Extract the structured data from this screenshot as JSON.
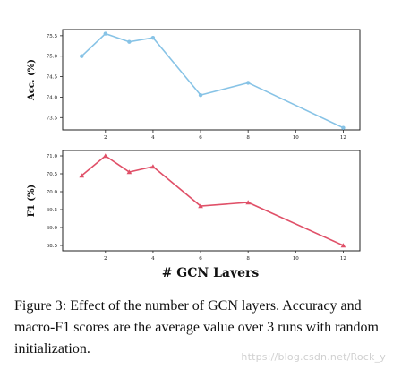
{
  "figure": {
    "xlabel": "# GCN Layers",
    "caption": "Figure 3:  Effect of the number of GCN layers.  Accuracy and macro-F1 scores are the average value over 3 runs with random initialization.",
    "watermark": "https://blog.csdn.net/Rock_y"
  },
  "chart_data": [
    {
      "type": "line",
      "ylabel": "Acc. (%)",
      "x": [
        1,
        2,
        3,
        4,
        6,
        8,
        12
      ],
      "xticks": [
        2,
        4,
        6,
        8,
        10,
        12
      ],
      "y": [
        75.0,
        75.55,
        75.35,
        75.45,
        74.05,
        74.35,
        73.25
      ],
      "yticks": [
        73.5,
        74.0,
        74.5,
        75.0,
        75.5
      ],
      "ylim": [
        73.2,
        75.65
      ],
      "xlim": [
        0.2,
        12.7
      ],
      "color": "#87c3e6",
      "marker": "circle",
      "grid": false
    },
    {
      "type": "line",
      "ylabel": "F1 (%)",
      "x": [
        1,
        2,
        3,
        4,
        6,
        8,
        12
      ],
      "xticks": [
        2,
        4,
        6,
        8,
        10,
        12
      ],
      "y": [
        70.45,
        71.0,
        70.55,
        70.7,
        69.6,
        69.7,
        68.5
      ],
      "yticks": [
        68.5,
        69.0,
        69.5,
        70.0,
        70.5,
        71.0
      ],
      "ylim": [
        68.35,
        71.15
      ],
      "xlim": [
        0.2,
        12.7
      ],
      "color": "#e05068",
      "marker": "triangle",
      "grid": false
    }
  ]
}
